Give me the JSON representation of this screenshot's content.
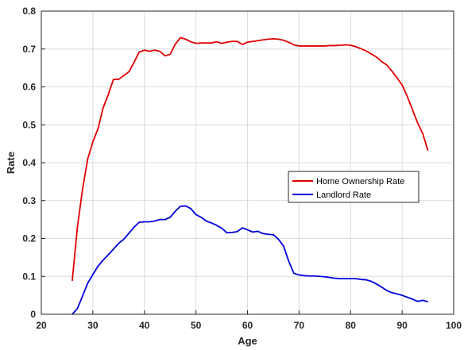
{
  "chart_data": {
    "type": "line",
    "title": "",
    "xlabel": "Age",
    "ylabel": "Rate",
    "xlim": [
      20,
      100
    ],
    "ylim": [
      0,
      0.8
    ],
    "xticks": [
      20,
      30,
      40,
      50,
      60,
      70,
      80,
      90,
      100
    ],
    "yticks": [
      0,
      0.1,
      0.2,
      0.3,
      0.4,
      0.5,
      0.6,
      0.7,
      0.8
    ],
    "xtick_labels": [
      "20",
      "30",
      "40",
      "50",
      "60",
      "70",
      "80",
      "90",
      "100"
    ],
    "ytick_labels": [
      "0",
      "0.1",
      "0.2",
      "0.3",
      "0.4",
      "0.5",
      "0.6",
      "0.7",
      "0.8"
    ],
    "grid": true,
    "legend_position": "center-right",
    "series": [
      {
        "name": "Home Ownership Rate",
        "color": "#e00000",
        "x": [
          26,
          27,
          28,
          29,
          30,
          31,
          32,
          33,
          34,
          35,
          36,
          37,
          38,
          39,
          40,
          41,
          42,
          43,
          44,
          45,
          46,
          47,
          48,
          49,
          50,
          51,
          52,
          53,
          54,
          55,
          56,
          57,
          58,
          59,
          60,
          61,
          62,
          63,
          64,
          65,
          66,
          67,
          68,
          69,
          70,
          71,
          72,
          73,
          74,
          75,
          76,
          77,
          78,
          79,
          80,
          81,
          82,
          83,
          84,
          85,
          86,
          87,
          88,
          89,
          90,
          91,
          92,
          93,
          94,
          95
        ],
        "y": [
          0.088,
          0.23,
          0.33,
          0.41,
          0.455,
          0.49,
          0.545,
          0.58,
          0.62,
          0.62,
          0.63,
          0.64,
          0.665,
          0.692,
          0.697,
          0.694,
          0.697,
          0.694,
          0.682,
          0.686,
          0.713,
          0.73,
          0.726,
          0.719,
          0.715,
          0.716,
          0.716,
          0.716,
          0.719,
          0.715,
          0.718,
          0.72,
          0.72,
          0.712,
          0.718,
          0.72,
          0.722,
          0.724,
          0.726,
          0.727,
          0.726,
          0.723,
          0.718,
          0.711,
          0.708,
          0.708,
          0.708,
          0.708,
          0.708,
          0.708,
          0.709,
          0.709,
          0.71,
          0.711,
          0.71,
          0.706,
          0.701,
          0.695,
          0.687,
          0.679,
          0.667,
          0.658,
          0.642,
          0.624,
          0.605,
          0.575,
          0.54,
          0.505,
          0.477,
          0.432
        ]
      },
      {
        "name": "Landlord Rate",
        "color": "#0000e0",
        "x": [
          26,
          27,
          28,
          29,
          30,
          31,
          32,
          33,
          34,
          35,
          36,
          37,
          38,
          39,
          40,
          41,
          42,
          43,
          44,
          45,
          46,
          47,
          48,
          49,
          50,
          51,
          52,
          53,
          54,
          55,
          56,
          57,
          58,
          59,
          60,
          61,
          62,
          63,
          64,
          65,
          66,
          67,
          68,
          69,
          70,
          71,
          72,
          73,
          74,
          75,
          76,
          77,
          78,
          79,
          80,
          81,
          82,
          83,
          84,
          85,
          86,
          87,
          88,
          89,
          90,
          91,
          92,
          93,
          94,
          95
        ],
        "y": [
          0.0,
          0.015,
          0.048,
          0.082,
          0.105,
          0.127,
          0.143,
          0.157,
          0.172,
          0.187,
          0.198,
          0.214,
          0.23,
          0.243,
          0.244,
          0.244,
          0.246,
          0.25,
          0.25,
          0.256,
          0.272,
          0.285,
          0.286,
          0.279,
          0.263,
          0.256,
          0.246,
          0.241,
          0.235,
          0.227,
          0.215,
          0.216,
          0.218,
          0.228,
          0.223,
          0.217,
          0.219,
          0.213,
          0.211,
          0.21,
          0.198,
          0.18,
          0.14,
          0.108,
          0.104,
          0.102,
          0.101,
          0.101,
          0.1,
          0.099,
          0.097,
          0.095,
          0.094,
          0.094,
          0.094,
          0.094,
          0.092,
          0.091,
          0.087,
          0.08,
          0.072,
          0.063,
          0.057,
          0.054,
          0.05,
          0.045,
          0.04,
          0.034,
          0.037,
          0.033
        ]
      }
    ]
  }
}
